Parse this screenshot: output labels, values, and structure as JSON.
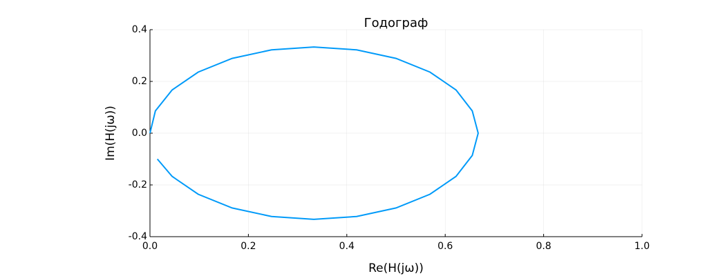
{
  "chart_data": {
    "type": "line",
    "title": "Годограф",
    "x_label": "Re(H(jω))",
    "y_label": "Im(H(jω))",
    "x": [
      0.015,
      0.045,
      0.098,
      0.167,
      0.247,
      0.333,
      0.42,
      0.5,
      0.569,
      0.622,
      0.655,
      0.667,
      0.655,
      0.622,
      0.569,
      0.5,
      0.42,
      0.333,
      0.247,
      0.167,
      0.098,
      0.045,
      0.011,
      0.0
    ],
    "series": [
      {
        "color": "#009af9",
        "values": [
          -0.1,
          -0.167,
          -0.236,
          -0.289,
          -0.322,
          -0.333,
          -0.322,
          -0.289,
          -0.236,
          -0.167,
          -0.086,
          0.0,
          0.086,
          0.167,
          0.236,
          0.289,
          0.322,
          0.333,
          0.322,
          0.289,
          0.236,
          0.167,
          0.086,
          0.0
        ]
      }
    ],
    "xlim": [
      0,
      1
    ],
    "ylim": [
      -0.4,
      0.4
    ],
    "xticks": [
      {
        "value": 0,
        "label": "0.0"
      },
      0.2,
      0.4,
      0.6,
      0.8,
      {
        "value": 1,
        "label": "1.0"
      }
    ],
    "yticks": [
      -0.4,
      -0.2,
      {
        "value": 0,
        "label": "0.0"
      },
      0.2,
      0.4
    ],
    "grid": true
  }
}
